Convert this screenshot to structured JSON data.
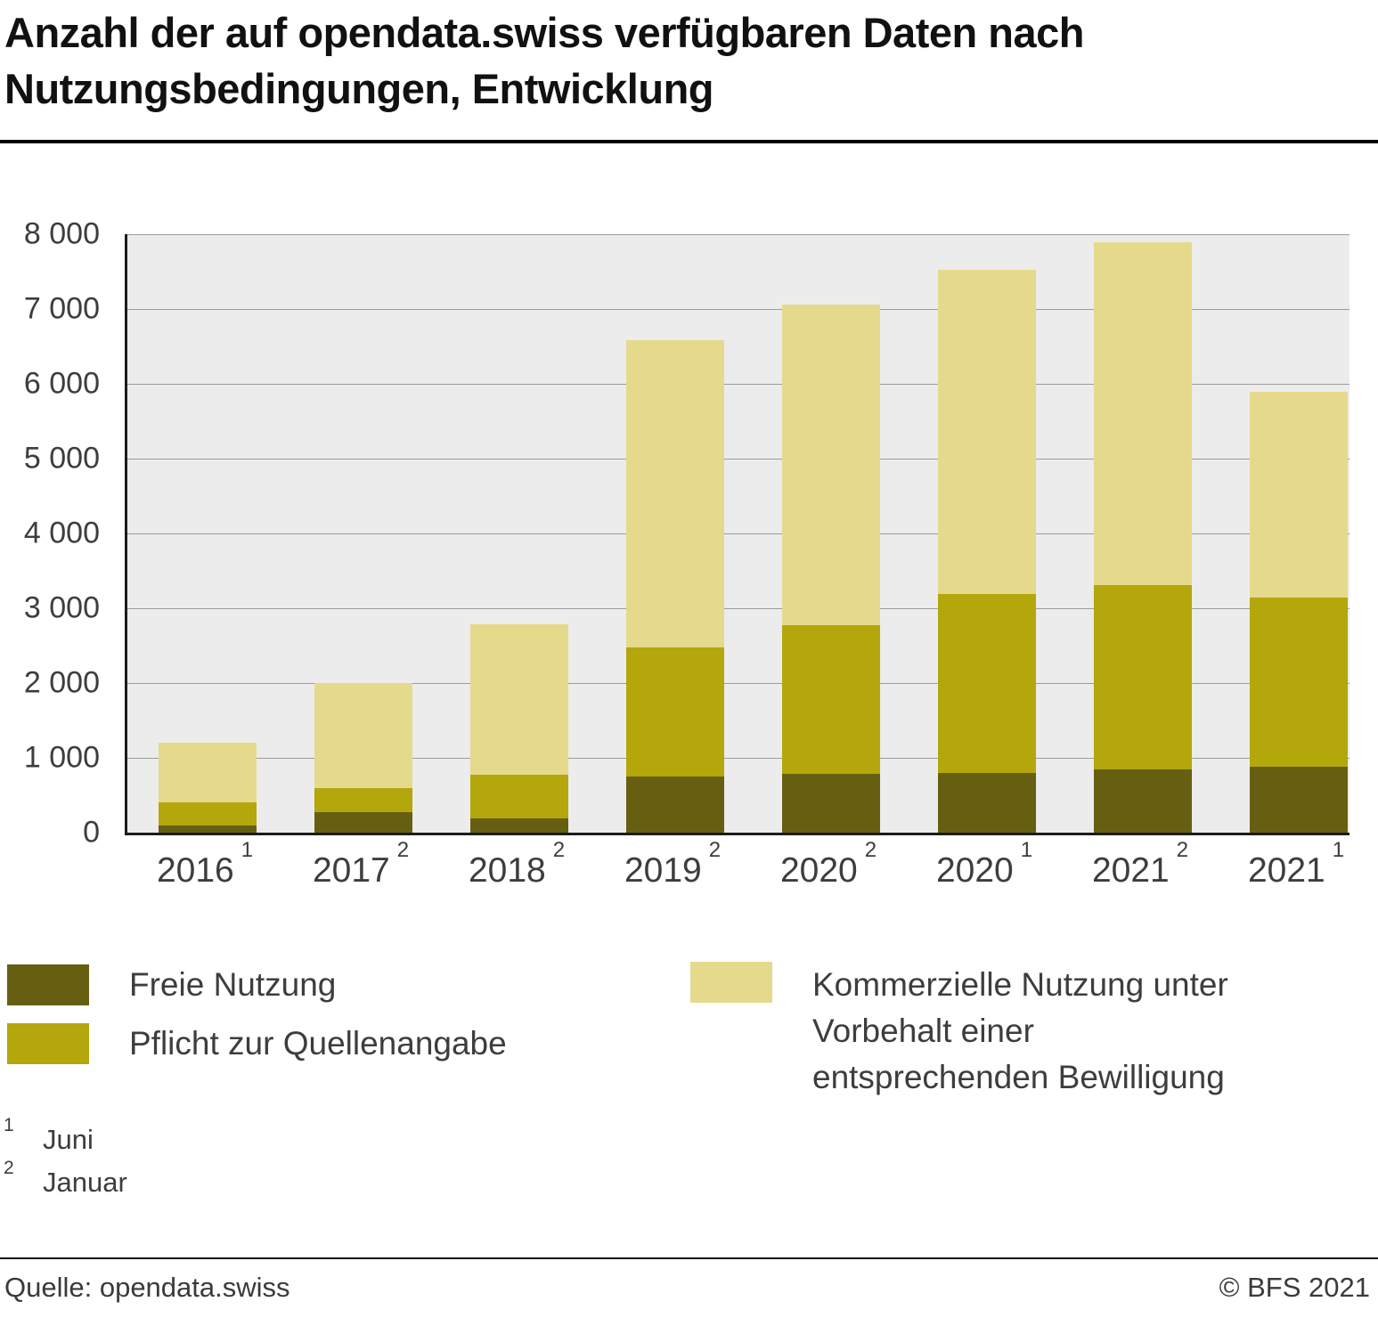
{
  "title": {
    "line1": "Anzahl der auf opendata.swiss verfügbaren Daten nach",
    "line2": "Nutzungsbedingungen, Entwicklung"
  },
  "chart_data": {
    "type": "bar",
    "stacked": true,
    "title": "Anzahl der auf opendata.swiss verfügbaren Daten nach Nutzungsbedingungen, Entwicklung",
    "xlabel": "",
    "ylabel": "",
    "ylim": [
      0,
      8000
    ],
    "ytick_interval": 1000,
    "yticks": [
      "8 000",
      "7 000",
      "6 000",
      "5 000",
      "4 000",
      "3 000",
      "2 000",
      "1 000",
      "0"
    ],
    "grid": true,
    "legend_position": "bottom",
    "plot_background": "#ececec",
    "categories": [
      {
        "year": "2016",
        "footnote": "1"
      },
      {
        "year": "2017",
        "footnote": "2"
      },
      {
        "year": "2018",
        "footnote": "2"
      },
      {
        "year": "2019",
        "footnote": "2"
      },
      {
        "year": "2020",
        "footnote": "2"
      },
      {
        "year": "2020",
        "footnote": "1"
      },
      {
        "year": "2021",
        "footnote": "2"
      },
      {
        "year": "2021",
        "footnote": "1"
      }
    ],
    "series": [
      {
        "name": "Freie Nutzung",
        "color": "#665f12",
        "values": [
          100,
          270,
          190,
          750,
          780,
          800,
          845,
          880
        ]
      },
      {
        "name": "Pflicht zur Quellenangabe",
        "color": "#b3a70b",
        "values": [
          300,
          330,
          590,
          1730,
          1990,
          2390,
          2465,
          2260
        ]
      },
      {
        "name": "Kommerzielle Nutzung unter Vorbehalt einer entsprechenden Bewilligung",
        "color": "#e5da8c",
        "values": [
          800,
          1400,
          2010,
          4100,
          4290,
          4340,
          4580,
          2750
        ]
      }
    ],
    "totals": [
      1200,
      2000,
      2790,
      6580,
      7060,
      7530,
      7890,
      5890
    ]
  },
  "legend": {
    "freie_nutzung": "Freie Nutzung",
    "pflicht_quellenangabe": "Pflicht zur Quellenangabe",
    "kommerzielle_lines": [
      "Kommerzielle Nutzung unter",
      "Vorbehalt einer",
      "entsprechenden Bewilligung"
    ]
  },
  "footnotes": [
    {
      "marker": "1",
      "text": "Juni"
    },
    {
      "marker": "2",
      "text": "Januar"
    }
  ],
  "footer": {
    "source": "Quelle: opendata.swiss",
    "copyright": "© BFS 2021"
  }
}
